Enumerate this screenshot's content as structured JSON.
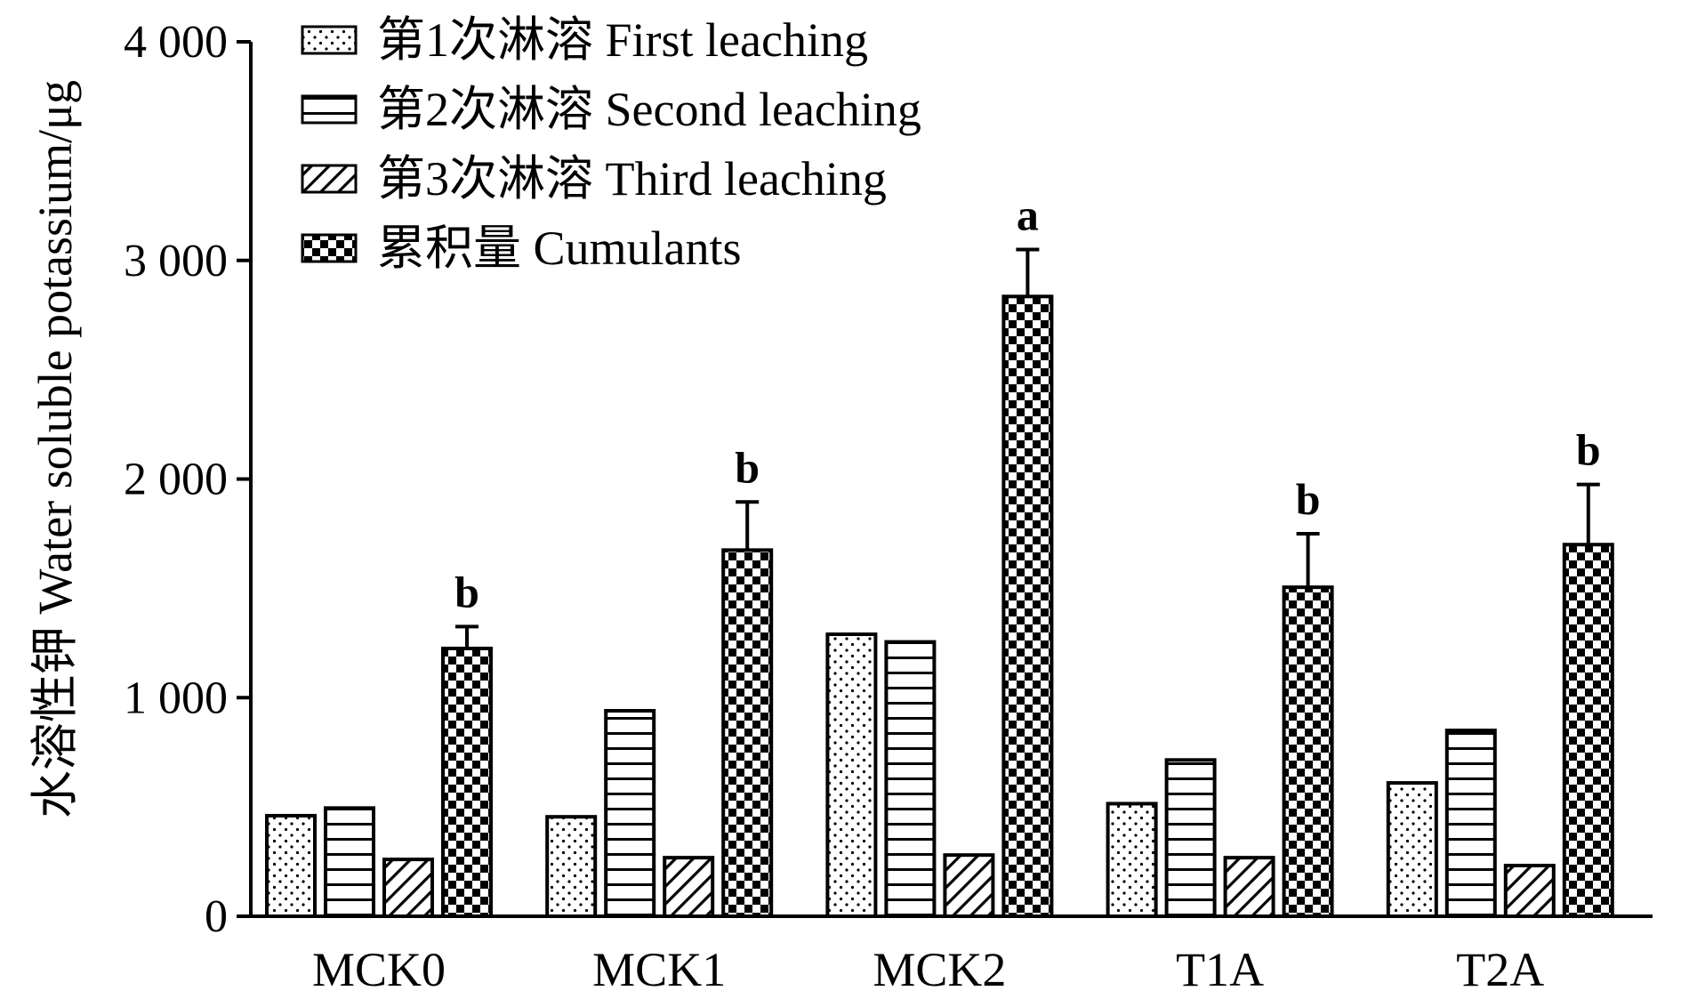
{
  "chart_data": {
    "type": "bar",
    "ylabel": "水溶性钾 Water soluble potassium/μg",
    "xlabel": "",
    "ylim": [
      0,
      4000
    ],
    "yticks": [
      0,
      1000,
      2000,
      3000,
      4000
    ],
    "ytick_labels": [
      "0",
      "1 000",
      "2 000",
      "3 000",
      "4 000"
    ],
    "categories": [
      "MCK0",
      "MCK1",
      "MCK2",
      "T1A",
      "T2A"
    ],
    "series": [
      {
        "name": "第1次淋溶 First leaching",
        "pattern": "dots",
        "values": [
          460,
          455,
          1290,
          515,
          610
        ]
      },
      {
        "name": "第2次淋溶 Second leaching",
        "pattern": "hlines",
        "values": [
          495,
          940,
          1255,
          715,
          850
        ]
      },
      {
        "name": "第3次淋溶 Third leaching",
        "pattern": "diag",
        "values": [
          260,
          268,
          280,
          268,
          232
        ]
      },
      {
        "name": "累积量 Cumulants",
        "pattern": "checker",
        "values": [
          1225,
          1675,
          2835,
          1505,
          1700
        ],
        "error": [
          100,
          220,
          215,
          245,
          275
        ],
        "significance": [
          "b",
          "b",
          "a",
          "b",
          "b"
        ]
      }
    ],
    "legend_position": "top-left",
    "grid": false,
    "colors": {
      "bar_fill": "#ffffff",
      "stroke": "#000000"
    }
  }
}
